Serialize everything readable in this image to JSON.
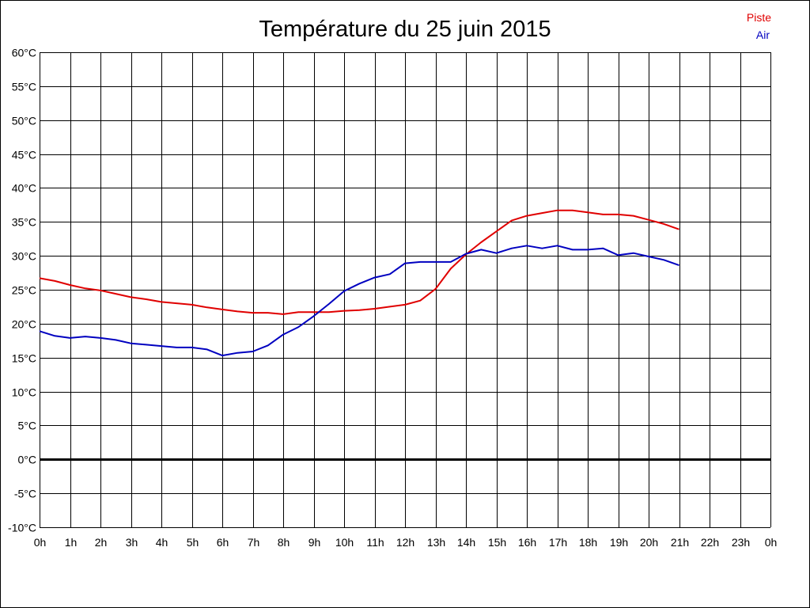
{
  "chart_data": {
    "type": "line",
    "title": "Température du 25 juin 2015",
    "xlabel": "",
    "ylabel": "",
    "x_ticks": [
      "0h",
      "1h",
      "2h",
      "3h",
      "4h",
      "5h",
      "6h",
      "7h",
      "8h",
      "9h",
      "10h",
      "11h",
      "12h",
      "13h",
      "14h",
      "15h",
      "16h",
      "17h",
      "18h",
      "19h",
      "20h",
      "21h",
      "22h",
      "23h",
      "0h"
    ],
    "xlim": [
      0,
      24
    ],
    "y_ticks": [
      "60°C",
      "55°C",
      "50°C",
      "45°C",
      "40°C",
      "35°C",
      "30°C",
      "25°C",
      "20°C",
      "15°C",
      "10°C",
      "5°C",
      "0°C",
      "-5°C",
      "-10°C"
    ],
    "y_tick_values": [
      60,
      55,
      50,
      45,
      40,
      35,
      30,
      25,
      20,
      15,
      10,
      5,
      0,
      -5,
      -10
    ],
    "ylim": [
      -10,
      60
    ],
    "grid": true,
    "zero_line": true,
    "legend_position": "top-right",
    "series": [
      {
        "name": "Piste",
        "color": "#e00000",
        "x": [
          0,
          0.5,
          1,
          1.5,
          2,
          2.5,
          3,
          3.5,
          4,
          4.5,
          5,
          5.5,
          6,
          6.5,
          7,
          7.5,
          8,
          8.5,
          9,
          9.5,
          10,
          10.5,
          11,
          11.5,
          12,
          12.5,
          13,
          13.5,
          14,
          14.5,
          15,
          15.5,
          16,
          16.5,
          17,
          17.5,
          18,
          18.5,
          19,
          19.5,
          20,
          20.5,
          21
        ],
        "values": [
          26.7,
          26.3,
          25.7,
          25.2,
          24.9,
          24.4,
          23.9,
          23.6,
          23.2,
          23.0,
          22.8,
          22.4,
          22.1,
          21.8,
          21.6,
          21.6,
          21.4,
          21.7,
          21.7,
          21.7,
          21.9,
          22.0,
          22.2,
          22.5,
          22.8,
          23.4,
          25.1,
          28.1,
          30.2,
          32.0,
          33.6,
          35.2,
          35.9,
          36.3,
          36.7,
          36.7,
          36.4,
          36.1,
          36.1,
          35.9,
          35.3,
          34.7,
          33.9
        ]
      },
      {
        "name": "Air",
        "color": "#0000c0",
        "x": [
          0,
          0.5,
          1,
          1.5,
          2,
          2.5,
          3,
          3.5,
          4,
          4.5,
          5,
          5.5,
          6,
          6.5,
          7,
          7.5,
          8,
          8.5,
          9,
          9.5,
          10,
          10.5,
          11,
          11.5,
          12,
          12.5,
          13,
          13.5,
          14,
          14.5,
          15,
          15.5,
          16,
          16.5,
          17,
          17.5,
          18,
          18.5,
          19,
          19.5,
          20,
          20.5,
          21
        ],
        "values": [
          18.9,
          18.2,
          17.9,
          18.1,
          17.9,
          17.6,
          17.1,
          16.9,
          16.7,
          16.5,
          16.5,
          16.2,
          15.3,
          15.7,
          15.9,
          16.8,
          18.4,
          19.5,
          21.1,
          22.9,
          24.8,
          25.9,
          26.8,
          27.3,
          28.9,
          29.1,
          29.1,
          29.1,
          30.3,
          30.9,
          30.4,
          31.1,
          31.5,
          31.1,
          31.5,
          30.9,
          30.9,
          31.1,
          30.1,
          30.4,
          29.9,
          29.4,
          28.6
        ]
      }
    ]
  }
}
